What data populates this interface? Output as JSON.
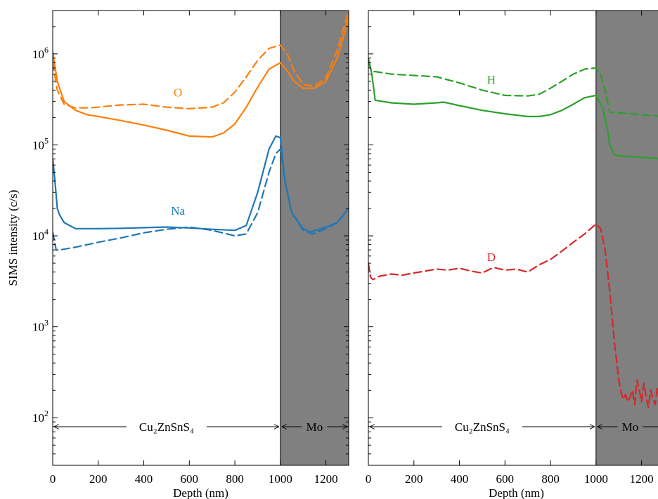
{
  "figure": {
    "ylabel": "SIMS intensity (c/s)",
    "y_scale": "log",
    "y_tick_labels": [
      "10^2",
      "10^3",
      "10^4",
      "10^5",
      "10^6"
    ]
  },
  "colors": {
    "orange": "#ff7f0e",
    "blue": "#1f77b4",
    "green": "#2ca02c",
    "red": "#d62728",
    "mo_shade": "#808080"
  },
  "chart_data": [
    {
      "type": "line",
      "panel": "left",
      "xlabel": "Depth (nm)",
      "ylabel": "SIMS intensity (c/s)",
      "xlim": [
        0,
        1300
      ],
      "ylim": [
        30,
        3000000
      ],
      "y_scale": "log",
      "xticks": [
        0,
        200,
        400,
        600,
        800,
        1000,
        1200
      ],
      "grid": false,
      "shaded_region": {
        "x": [
          1000,
          1300
        ],
        "label": "Mo"
      },
      "region_labels": {
        "film": "Cu₂ZnSnS₄",
        "substrate": "Mo"
      },
      "series": [
        {
          "name": "O",
          "style": "solid",
          "color": "orange",
          "x": [
            0,
            20,
            50,
            100,
            150,
            200,
            300,
            400,
            500,
            600,
            700,
            750,
            800,
            850,
            900,
            950,
            1000,
            1030,
            1060,
            1100,
            1150,
            1200,
            1250,
            1300
          ],
          "y": [
            1050000,
            500000,
            300000,
            240000,
            215000,
            205000,
            185000,
            165000,
            145000,
            125000,
            122000,
            135000,
            170000,
            260000,
            430000,
            680000,
            800000,
            650000,
            500000,
            420000,
            420000,
            500000,
            900000,
            2500000
          ]
        },
        {
          "name": "O",
          "style": "dashed",
          "color": "orange",
          "x": [
            0,
            20,
            50,
            100,
            150,
            200,
            300,
            400,
            500,
            600,
            700,
            750,
            800,
            850,
            900,
            950,
            1000,
            1030,
            1060,
            1100,
            1150,
            1200,
            1250,
            1300
          ],
          "y": [
            800000,
            400000,
            280000,
            255000,
            255000,
            260000,
            275000,
            280000,
            260000,
            250000,
            260000,
            290000,
            380000,
            560000,
            850000,
            1150000,
            1250000,
            1000000,
            650000,
            460000,
            440000,
            550000,
            1100000,
            3000000
          ]
        },
        {
          "name": "Na",
          "style": "solid",
          "color": "blue",
          "x": [
            0,
            10,
            20,
            30,
            50,
            100,
            200,
            300,
            400,
            500,
            600,
            700,
            800,
            850,
            900,
            950,
            980,
            1000,
            1020,
            1050,
            1100,
            1130,
            1200,
            1250,
            1300
          ],
          "y": [
            70000,
            40000,
            20000,
            17000,
            14000,
            12000,
            12000,
            12100,
            12300,
            12500,
            12200,
            11800,
            11500,
            13000,
            30000,
            90000,
            125000,
            120000,
            40000,
            18000,
            12000,
            11000,
            12500,
            14000,
            20000
          ]
        },
        {
          "name": "Na",
          "style": "dashed",
          "color": "blue",
          "x": [
            0,
            15,
            30,
            100,
            200,
            300,
            400,
            500,
            600,
            700,
            800,
            850,
            900,
            950,
            980,
            1000,
            1020,
            1050,
            1100,
            1140,
            1200,
            1250,
            1300
          ],
          "y": [
            11000,
            7000,
            7000,
            7500,
            8500,
            9500,
            10800,
            11800,
            12500,
            11500,
            10000,
            10500,
            18000,
            50000,
            80000,
            90000,
            40000,
            18000,
            11500,
            10500,
            12000,
            14000,
            20000
          ]
        }
      ],
      "annotations": [
        {
          "text": "O",
          "color": "orange",
          "at": [
            550,
            340000
          ]
        },
        {
          "text": "Na",
          "color": "blue",
          "at": [
            550,
            17000
          ]
        }
      ]
    },
    {
      "type": "line",
      "panel": "right",
      "xlabel": "Depth (nm)",
      "xlim": [
        0,
        1300
      ],
      "ylim": [
        30,
        3000000
      ],
      "y_scale": "log",
      "xticks": [
        0,
        200,
        400,
        600,
        800,
        1000,
        1200
      ],
      "grid": false,
      "shaded_region": {
        "x": [
          1000,
          1300
        ],
        "label": "Mo"
      },
      "region_labels": {
        "film": "Cu₂ZnSnS₄",
        "substrate": "Mo"
      },
      "series": [
        {
          "name": "H",
          "style": "solid",
          "color": "green",
          "x": [
            0,
            15,
            30,
            100,
            200,
            300,
            330,
            400,
            500,
            600,
            700,
            750,
            800,
            850,
            900,
            950,
            1000,
            1030,
            1050,
            1060,
            1080,
            1100,
            1200,
            1300
          ],
          "y": [
            900000,
            600000,
            310000,
            290000,
            280000,
            290000,
            295000,
            270000,
            240000,
            220000,
            205000,
            205000,
            215000,
            240000,
            280000,
            330000,
            350000,
            250000,
            150000,
            100000,
            78000,
            76000,
            73000,
            70000
          ]
        },
        {
          "name": "H",
          "style": "dashed",
          "color": "green",
          "x": [
            0,
            15,
            30,
            100,
            200,
            300,
            400,
            500,
            600,
            700,
            750,
            800,
            850,
            900,
            950,
            1000,
            1020,
            1040,
            1060,
            1100,
            1200,
            1300
          ],
          "y": [
            800000,
            640000,
            640000,
            600000,
            580000,
            560000,
            480000,
            400000,
            350000,
            345000,
            360000,
            420000,
            500000,
            600000,
            680000,
            700000,
            600000,
            400000,
            230000,
            225000,
            215000,
            205000
          ]
        },
        {
          "name": "D",
          "style": "dashed",
          "color": "red",
          "x": [
            0,
            10,
            20,
            50,
            100,
            150,
            200,
            250,
            300,
            350,
            400,
            450,
            500,
            550,
            600,
            650,
            700,
            750,
            800,
            850,
            900,
            950,
            1000,
            1020,
            1040,
            1060,
            1080,
            1100,
            1110,
            1120,
            1130,
            1140,
            1150,
            1160,
            1170,
            1180,
            1190,
            1200,
            1210,
            1220,
            1230,
            1240,
            1250,
            1260,
            1270,
            1280,
            1290,
            1300
          ],
          "y": [
            5000,
            3500,
            3300,
            3600,
            3800,
            3700,
            3900,
            4100,
            4300,
            4200,
            4400,
            4100,
            3900,
            4500,
            4200,
            4300,
            4000,
            4800,
            5500,
            6800,
            8500,
            10500,
            13500,
            12000,
            7000,
            2500,
            700,
            260,
            190,
            160,
            180,
            150,
            170,
            200,
            140,
            260,
            200,
            150,
            240,
            170,
            130,
            200,
            160,
            140,
            220,
            150,
            190,
            160
          ]
        }
      ],
      "annotations": [
        {
          "text": "H",
          "color": "green",
          "at": [
            540,
            470000
          ]
        },
        {
          "text": "D",
          "color": "red",
          "at": [
            540,
            5300
          ]
        }
      ]
    }
  ]
}
